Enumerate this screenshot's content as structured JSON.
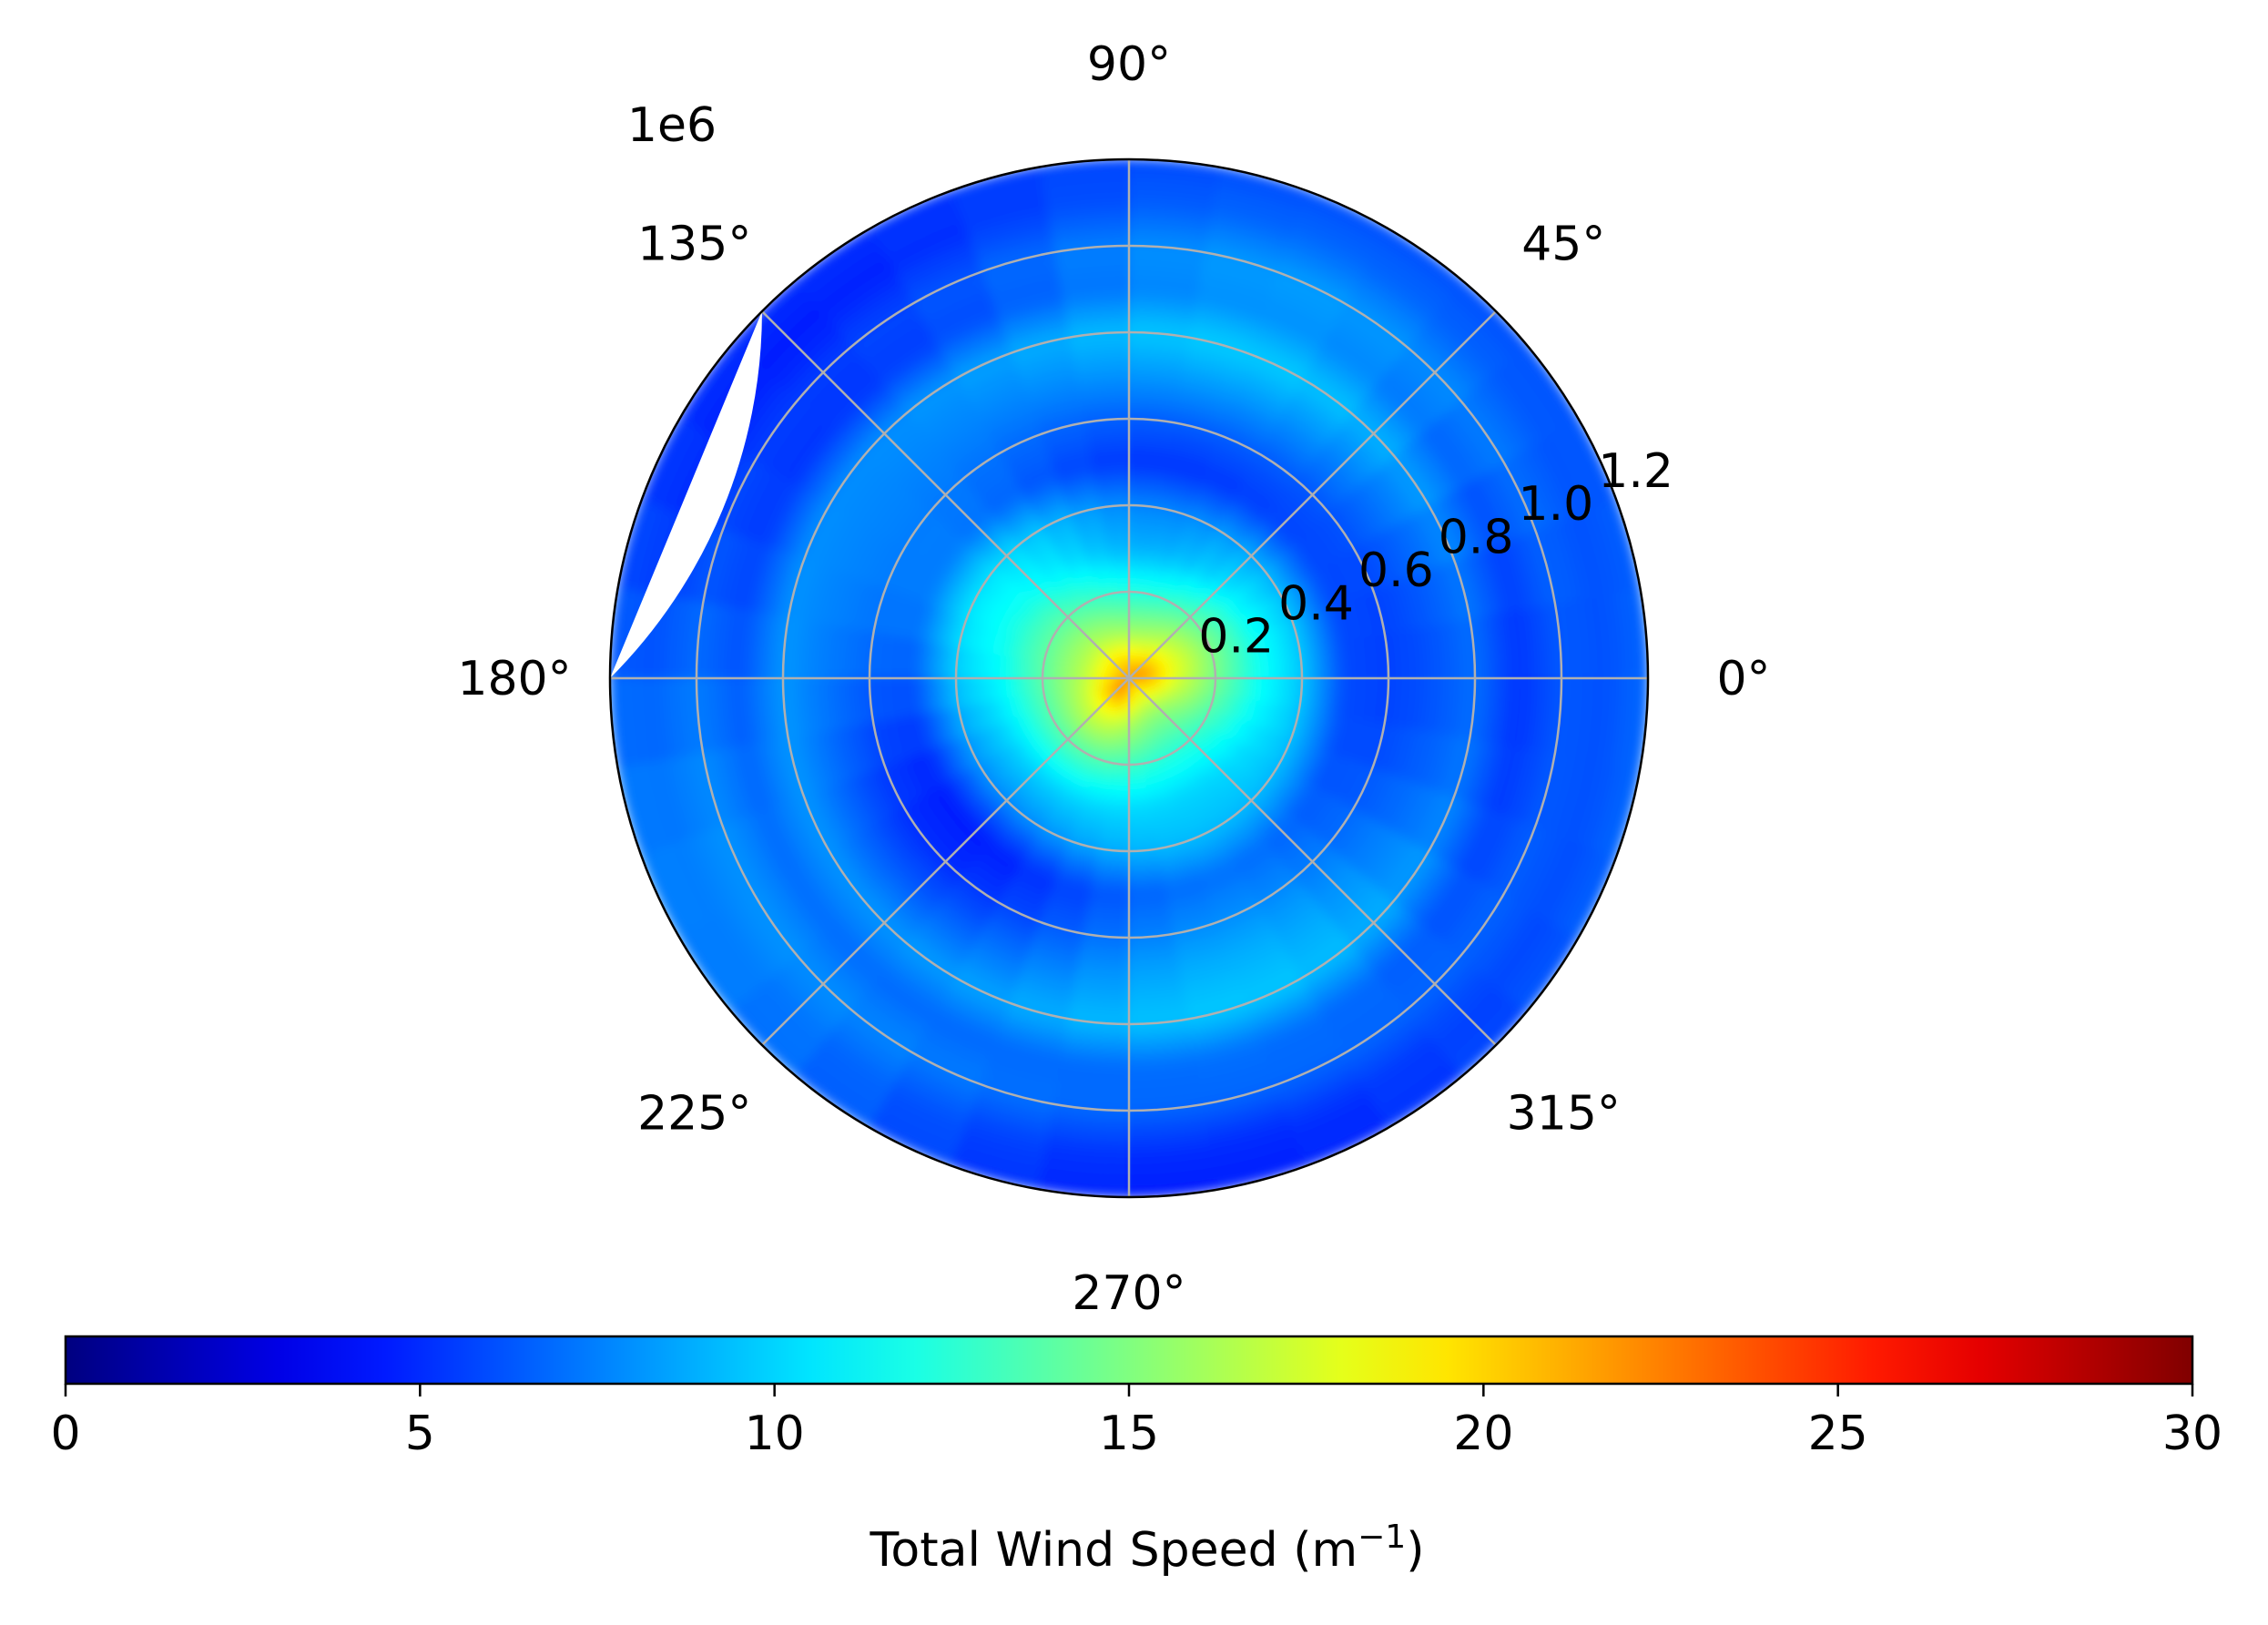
{
  "chart_data": {
    "type": "heatmap",
    "projection": "polar",
    "title": "",
    "radial_offset_label": "1e6",
    "radial_ticks": [
      "0.2",
      "0.4",
      "0.6",
      "0.8",
      "1.0",
      "1.2"
    ],
    "radial_tick_values": [
      0.2,
      0.4,
      0.6,
      0.8,
      1.0,
      1.2
    ],
    "radial_max": 1.2,
    "angular_ticks": [
      {
        "deg": 0,
        "label": "0°"
      },
      {
        "deg": 45,
        "label": "45°"
      },
      {
        "deg": 90,
        "label": "90°"
      },
      {
        "deg": 135,
        "label": "135°"
      },
      {
        "deg": 180,
        "label": "180°"
      },
      {
        "deg": 225,
        "label": "225°"
      },
      {
        "deg": 270,
        "label": "270°"
      },
      {
        "deg": 315,
        "label": "315°"
      }
    ],
    "grid": true,
    "colormap": "jet",
    "data_gap_theta_deg": [
      135,
      180
    ],
    "wind_field_profile": {
      "radius": [
        0.0,
        0.05,
        0.1,
        0.2,
        0.3,
        0.4,
        0.5,
        0.6,
        0.7,
        0.8,
        0.9,
        1.0,
        1.1,
        1.2
      ],
      "speed": [
        22,
        20,
        17,
        13.5,
        10.5,
        9,
        6,
        6.5,
        7.5,
        8.5,
        6.5,
        7,
        6,
        6
      ]
    },
    "colorbar": {
      "label": "Total Wind Speed (m",
      "label_sup": "−1",
      "label_suffix": ")",
      "min": 0,
      "max": 30,
      "ticks": [
        "0",
        "5",
        "10",
        "15",
        "20",
        "25",
        "30"
      ],
      "tick_values": [
        0,
        5,
        10,
        15,
        20,
        25,
        30
      ],
      "orientation": "horizontal",
      "placement": "bottom"
    }
  }
}
